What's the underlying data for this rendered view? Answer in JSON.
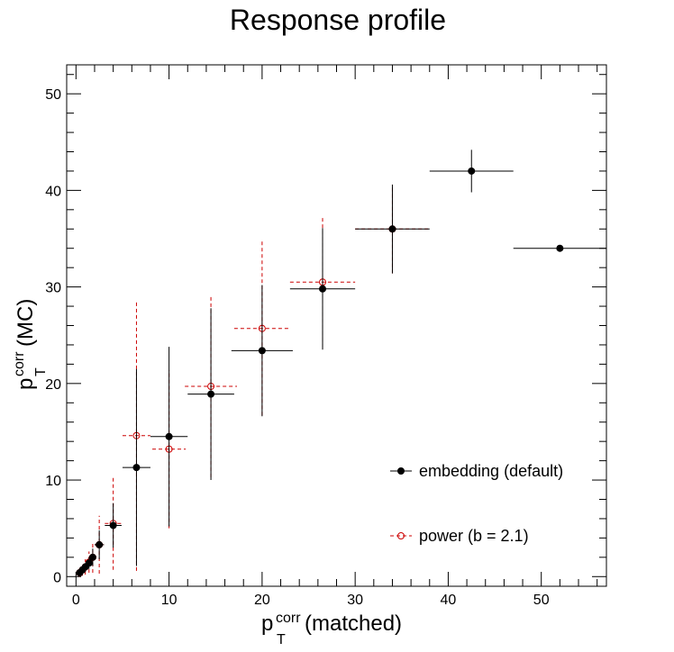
{
  "chart_data": {
    "type": "scatter",
    "title": "Response profile",
    "xlabel": {
      "main": "p",
      "sub": "T",
      "sup": "corr",
      "tail": "(matched)"
    },
    "ylabel": {
      "main": "p",
      "sub": "T",
      "sup": "corr",
      "tail": "(MC)"
    },
    "xlim": [
      -1,
      57
    ],
    "ylim": [
      -1,
      53
    ],
    "xticks": [
      0,
      10,
      20,
      30,
      40,
      50
    ],
    "yticks": [
      0,
      10,
      20,
      30,
      40,
      50
    ],
    "grid": false,
    "legend_position": "bottom-right",
    "series": [
      {
        "name": "embedding (default)",
        "color": "#000000",
        "marker": "filled-circle",
        "line_style": "solid",
        "points": [
          {
            "x": 0.4,
            "y": 0.4,
            "xerr": 0.1,
            "yerr": 0.2
          },
          {
            "x": 0.7,
            "y": 0.7,
            "xerr": 0.15,
            "yerr": 0.3
          },
          {
            "x": 1.0,
            "y": 1.0,
            "xerr": 0.15,
            "yerr": 0.4
          },
          {
            "x": 1.4,
            "y": 1.4,
            "xerr": 0.2,
            "yerr": 0.6
          },
          {
            "x": 1.8,
            "y": 2.0,
            "xerr": 0.3,
            "yerr": 0.9
          },
          {
            "x": 2.5,
            "y": 3.3,
            "xerr": 0.5,
            "yerr": 1.5
          },
          {
            "x": 4.0,
            "y": 5.3,
            "xerr": 0.9,
            "yerr": 2.3
          },
          {
            "x": 6.5,
            "y": 11.3,
            "xerr": 1.5,
            "yerr": 10.2
          },
          {
            "x": 10.0,
            "y": 14.5,
            "xerr": 2.0,
            "yerr": 9.3
          },
          {
            "x": 14.5,
            "y": 18.9,
            "xerr": 2.5,
            "yerr": 8.9
          },
          {
            "x": 20.0,
            "y": 23.4,
            "xerr": 3.3,
            "yerr": 6.8
          },
          {
            "x": 26.5,
            "y": 29.8,
            "xerr": 3.5,
            "yerr": 6.3
          },
          {
            "x": 34.0,
            "y": 36.0,
            "xerr": 4.0,
            "yerr": 4.6
          },
          {
            "x": 42.5,
            "y": 42.0,
            "xerr": 4.5,
            "yerr": 2.2
          },
          {
            "x": 52.0,
            "y": 34.0,
            "xerr": 5.0,
            "yerr": 0.3
          }
        ]
      },
      {
        "name": "power (b = 2.1)",
        "color": "#cc0000",
        "marker": "open-circle",
        "line_style": "dashed",
        "points": [
          {
            "x": 0.4,
            "y": 0.4,
            "xerr": 0.1,
            "yerr": 0.4
          },
          {
            "x": 0.7,
            "y": 0.7,
            "xerr": 0.15,
            "yerr": 0.6
          },
          {
            "x": 1.0,
            "y": 1.0,
            "xerr": 0.15,
            "yerr": 0.8
          },
          {
            "x": 1.4,
            "y": 1.5,
            "xerr": 0.2,
            "yerr": 1.1
          },
          {
            "x": 1.8,
            "y": 2.0,
            "xerr": 0.3,
            "yerr": 1.6
          },
          {
            "x": 2.5,
            "y": 3.3,
            "xerr": 0.5,
            "yerr": 3.0
          },
          {
            "x": 4.0,
            "y": 5.5,
            "xerr": 0.9,
            "yerr": 4.8
          },
          {
            "x": 6.5,
            "y": 14.6,
            "xerr": 1.5,
            "yerr": 14.0
          },
          {
            "x": 10.0,
            "y": 13.2,
            "xerr": 1.8,
            "yerr": 8.2
          },
          {
            "x": 14.5,
            "y": 19.7,
            "xerr": 2.8,
            "yerr": 9.4
          },
          {
            "x": 20.0,
            "y": 25.7,
            "xerr": 3.0,
            "yerr": 9.0
          },
          {
            "x": 26.5,
            "y": 30.5,
            "xerr": 3.5,
            "yerr": 6.8
          },
          {
            "x": 34.0,
            "y": 36.0,
            "xerr": 4.0,
            "yerr": 4.6
          }
        ]
      }
    ]
  }
}
